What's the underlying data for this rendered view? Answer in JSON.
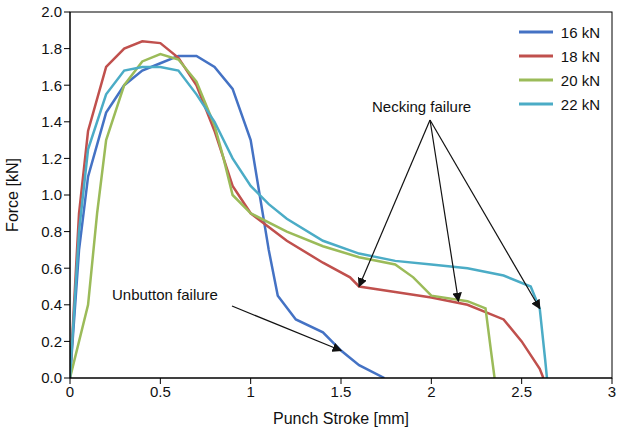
{
  "chart_data": {
    "type": "line",
    "xlabel": "Punch Stroke [mm]",
    "ylabel": "Force [kN]",
    "xlim": [
      0,
      3
    ],
    "xticks": [
      0,
      0.5,
      1,
      1.5,
      2,
      2.5,
      3
    ],
    "ylim": [
      0,
      2
    ],
    "yticks": [
      {
        "value": 0,
        "label": "0.0"
      },
      0.2,
      0.4,
      0.6,
      0.8,
      {
        "value": 1,
        "label": "1.0"
      },
      1.2,
      1.4,
      1.6,
      1.8,
      {
        "value": 2,
        "label": "2.0"
      }
    ],
    "grid": false,
    "legend": "top right",
    "series": [
      {
        "name": "16 kN",
        "color": "#4472c4",
        "x": [
          0,
          0.05,
          0.1,
          0.2,
          0.3,
          0.4,
          0.5,
          0.6,
          0.7,
          0.8,
          0.9,
          1.0,
          1.05,
          1.1,
          1.15,
          1.25,
          1.4,
          1.5,
          1.6,
          1.74
        ],
        "values": [
          0,
          0.7,
          1.1,
          1.45,
          1.6,
          1.68,
          1.72,
          1.76,
          1.76,
          1.7,
          1.58,
          1.3,
          1.0,
          0.7,
          0.45,
          0.32,
          0.25,
          0.15,
          0.07,
          0
        ]
      },
      {
        "name": "18 kN",
        "color": "#c0504d",
        "x": [
          0,
          0.05,
          0.1,
          0.2,
          0.3,
          0.4,
          0.5,
          0.6,
          0.7,
          0.8,
          0.85,
          0.9,
          1.0,
          1.2,
          1.4,
          1.55,
          1.6,
          1.8,
          2.0,
          2.2,
          2.4,
          2.5,
          2.6,
          2.62
        ],
        "values": [
          0,
          0.9,
          1.35,
          1.7,
          1.8,
          1.84,
          1.83,
          1.75,
          1.6,
          1.35,
          1.2,
          1.05,
          0.9,
          0.75,
          0.63,
          0.55,
          0.5,
          0.47,
          0.44,
          0.4,
          0.32,
          0.2,
          0.05,
          0
        ]
      },
      {
        "name": "20 kN",
        "color": "#9bbb59",
        "x": [
          0,
          0.1,
          0.15,
          0.2,
          0.3,
          0.4,
          0.5,
          0.6,
          0.7,
          0.8,
          0.85,
          0.9,
          1.0,
          1.2,
          1.4,
          1.6,
          1.8,
          1.9,
          2.0,
          2.2,
          2.3,
          2.33,
          2.35
        ],
        "values": [
          0,
          0.4,
          0.9,
          1.3,
          1.6,
          1.73,
          1.77,
          1.74,
          1.62,
          1.38,
          1.2,
          1.0,
          0.9,
          0.8,
          0.72,
          0.66,
          0.62,
          0.55,
          0.45,
          0.42,
          0.38,
          0.15,
          0
        ]
      },
      {
        "name": "22 kN",
        "color": "#4bacc6",
        "x": [
          0,
          0.05,
          0.1,
          0.2,
          0.3,
          0.4,
          0.5,
          0.6,
          0.7,
          0.8,
          0.9,
          1.0,
          1.1,
          1.2,
          1.4,
          1.6,
          1.8,
          2.0,
          2.2,
          2.4,
          2.55,
          2.6,
          2.63,
          2.64
        ],
        "values": [
          0,
          0.8,
          1.25,
          1.55,
          1.68,
          1.7,
          1.7,
          1.68,
          1.55,
          1.4,
          1.2,
          1.05,
          0.95,
          0.87,
          0.75,
          0.68,
          0.64,
          0.62,
          0.6,
          0.56,
          0.5,
          0.38,
          0.1,
          0
        ]
      }
    ],
    "annotations": [
      {
        "text": "Unbutton failure",
        "points": [
          [
            1.5,
            0.15
          ]
        ]
      },
      {
        "text": "Necking failure",
        "points": [
          [
            1.6,
            0.5
          ],
          [
            2.15,
            0.42
          ],
          [
            2.6,
            0.38
          ]
        ]
      }
    ]
  }
}
